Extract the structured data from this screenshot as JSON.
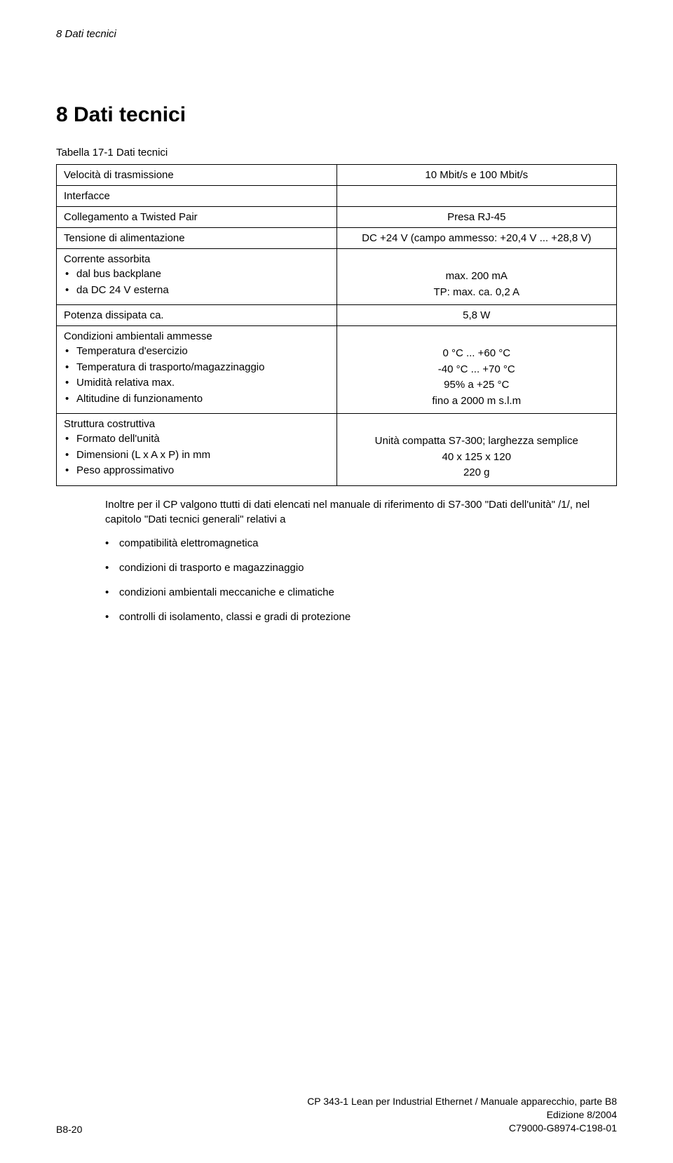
{
  "page": {
    "running_header": "8   Dati tecnici",
    "section_title": "8   Dati tecnici",
    "table_caption": "Tabella 17-1  Dati tecnici"
  },
  "table": {
    "rows": [
      {
        "type": "single",
        "label": "Velocità di trasmissione",
        "value": "10 Mbit/s e 100 Mbit/s",
        "value_align": "center"
      },
      {
        "type": "group_header",
        "label": "Interfacce"
      },
      {
        "type": "single",
        "label": "Collegamento a Twisted Pair",
        "value": "Presa RJ-45",
        "value_align": "center"
      },
      {
        "type": "single",
        "label": "Tensione di alimentazione",
        "value": "DC +24 V (campo ammesso: +20,4 V ... +28,8 V)",
        "value_align": "center"
      },
      {
        "type": "bulleted",
        "header": "Corrente assorbita",
        "items": [
          "dal bus backplane",
          "da DC 24 V esterna"
        ],
        "values": [
          "max. 200 mA",
          "TP: max. ca. 0,2 A"
        ]
      },
      {
        "type": "single",
        "label": "Potenza dissipata ca.",
        "value": "5,8 W",
        "value_align": "center"
      },
      {
        "type": "bulleted",
        "header": "Condizioni ambientali ammesse",
        "items": [
          "Temperatura d'esercizio",
          "Temperatura di trasporto/magazzinaggio",
          "Umidità relativa            max.",
          "Altitudine di funzionamento"
        ],
        "values": [
          "0 °C ... +60 °C",
          "-40 °C ...  +70 °C",
          "95% a +25 °C",
          "fino a 2000 m  s.l.m"
        ]
      },
      {
        "type": "bulleted",
        "header": "Struttura costruttiva",
        "items": [
          "Formato dell'unità",
          "Dimensioni (L x A x P) in mm",
          "Peso approssimativo"
        ],
        "values": [
          "Unità compatta S7-300; larghezza semplice",
          "40 x 125 x 120",
          "220 g"
        ]
      }
    ]
  },
  "body": {
    "paragraph": "Inoltre per il CP valgono ttutti di dati elencati nel manuale di riferimento di S7-300 \"Dati dell'unità\" /1/, nel capitolo \"Dati tecnici generali\" relativi a",
    "bullets": [
      "compatibilità elettromagnetica",
      "condizioni di trasporto e magazzinaggio",
      "condizioni ambientali meccaniche e climatiche",
      "controlli di isolamento, classi e gradi di protezione"
    ]
  },
  "footer": {
    "left": "B8-20",
    "right_line1": "CP 343-1 Lean per Industrial Ethernet / Manuale apparecchio, parte B8",
    "right_line2": "Edizione 8/2004",
    "right_line3": "C79000-G8974-C198-01"
  },
  "style": {
    "background": "#ffffff",
    "text_color": "#000000",
    "border_color": "#000000",
    "title_fontsize": 30,
    "body_fontsize": 15,
    "footer_fontsize": 14
  }
}
